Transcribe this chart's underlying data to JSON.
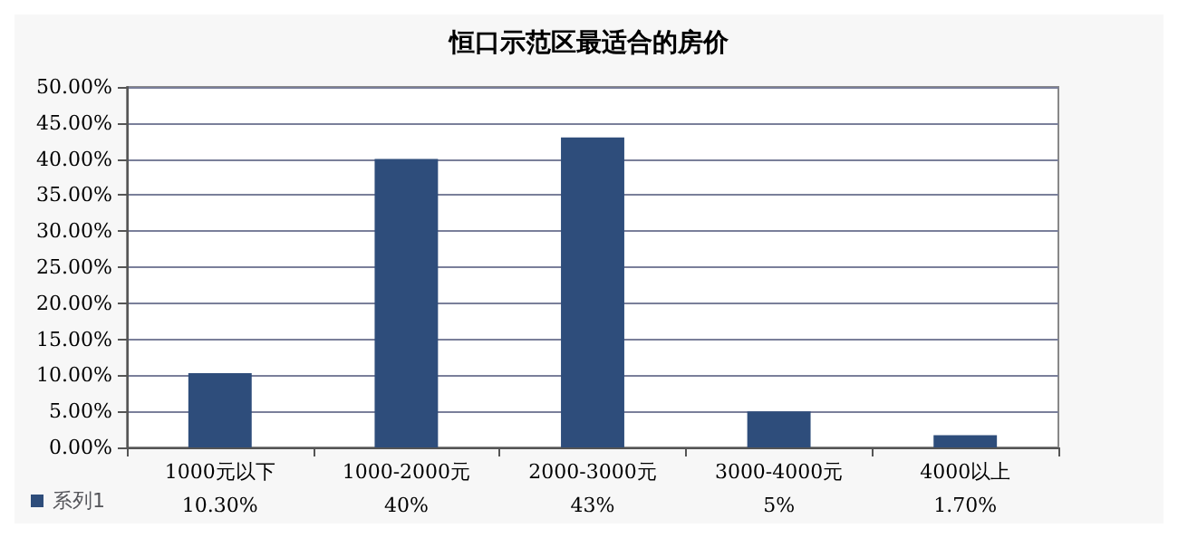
{
  "chart_data": {
    "type": "bar",
    "title": "恒口示范区最适合的房价",
    "categories": [
      "1000元以下",
      "1000-2000元",
      "2000-3000元",
      "3000-4000元",
      "4000以上"
    ],
    "series": [
      {
        "name": "系列1",
        "color": "#2e4d7b",
        "values": [
          10.3,
          40,
          43,
          5,
          1.7
        ],
        "value_labels": [
          "10.30%",
          "40%",
          "43%",
          "5%",
          "1.70%"
        ]
      }
    ],
    "ylim": [
      0,
      50
    ],
    "yticks": [
      {
        "value": 0,
        "label": "0.00%"
      },
      {
        "value": 5,
        "label": "5.00%"
      },
      {
        "value": 10,
        "label": "10.00%"
      },
      {
        "value": 15,
        "label": "15.00%"
      },
      {
        "value": 20,
        "label": "20.00%"
      },
      {
        "value": 25,
        "label": "25.00%"
      },
      {
        "value": 30,
        "label": "30.00%"
      },
      {
        "value": 35,
        "label": "35.00%"
      },
      {
        "value": 40,
        "label": "40.00%"
      },
      {
        "value": 45,
        "label": "45.00%"
      },
      {
        "value": 50,
        "label": "50.00%"
      }
    ],
    "grid": "y",
    "legend": "bottom left"
  }
}
